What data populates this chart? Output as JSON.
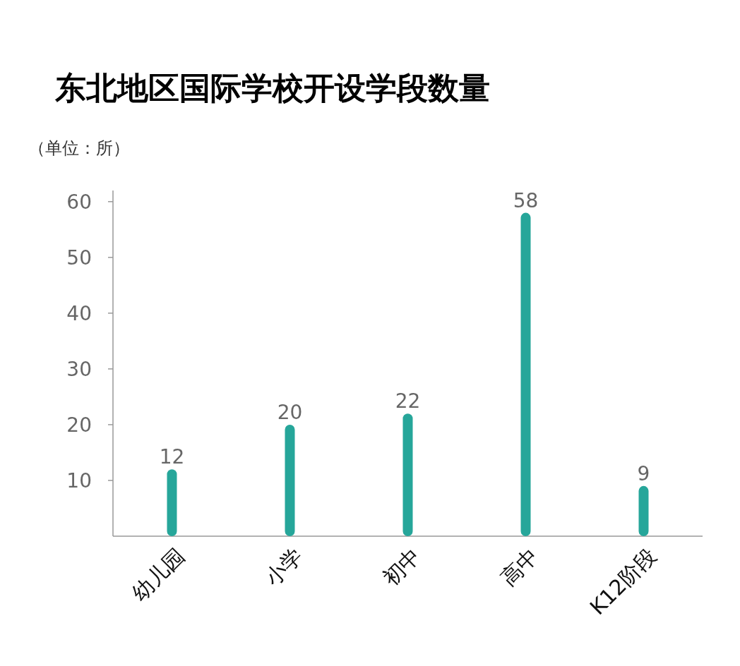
{
  "chart_data": {
    "type": "bar",
    "title": "东北地区国际学校开设学段数量",
    "ylabel": "（单位：所）",
    "categories": [
      "幼儿园",
      "小学",
      "初中",
      "高中",
      "K12阶段"
    ],
    "values": [
      12,
      20,
      22,
      58,
      9
    ],
    "color": "#26a69a",
    "ylim": [
      0,
      62
    ],
    "yticks": [
      10,
      20,
      30,
      40,
      50,
      60
    ],
    "data_labels": true
  }
}
